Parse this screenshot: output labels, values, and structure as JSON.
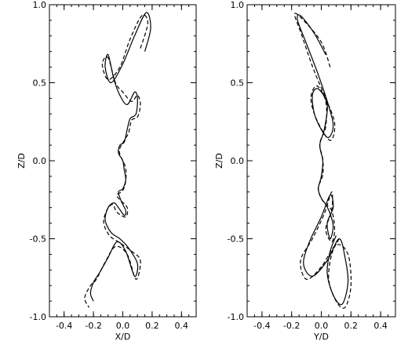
{
  "chart_data": [
    {
      "type": "line",
      "xlabel": "X/D",
      "ylabel": "Z/D",
      "xlim": [
        -0.5,
        0.5
      ],
      "ylim": [
        -1.0,
        1.0
      ],
      "xticks": [
        -0.4,
        -0.2,
        0.0,
        0.2,
        0.4
      ],
      "xtick_labels": [
        "-0.4",
        "-0.2",
        "0.0",
        "0.2",
        "0.4"
      ],
      "yticks": [
        -1.0,
        -0.5,
        0.0,
        0.5,
        1.0
      ],
      "ytick_labels": [
        "-1.0",
        "-0.5",
        "0.0",
        "0.5",
        "1.0"
      ],
      "grid": false,
      "series": [
        {
          "style": "solid",
          "x": [
            0.15,
            0.19,
            0.16,
            0.08,
            0.0,
            -0.08,
            -0.12,
            -0.1,
            -0.06,
            -0.02,
            0.03,
            0.08,
            0.1,
            0.09,
            0.05,
            0.03,
            0.01,
            -0.02,
            -0.03,
            0.0,
            0.01,
            0.02,
            0.0,
            -0.03,
            -0.01,
            0.02,
            0.01,
            -0.03,
            -0.06,
            -0.1,
            -0.12,
            -0.08,
            -0.02,
            0.04,
            0.1,
            0.08,
            0.02,
            -0.04,
            -0.1,
            -0.16,
            -0.2,
            -0.22,
            -0.2
          ],
          "y": [
            0.7,
            0.85,
            0.95,
            0.8,
            0.62,
            0.5,
            0.6,
            0.68,
            0.52,
            0.42,
            0.36,
            0.44,
            0.4,
            0.3,
            0.27,
            0.2,
            0.12,
            0.1,
            0.05,
            0.0,
            -0.06,
            -0.12,
            -0.18,
            -0.2,
            -0.26,
            -0.32,
            -0.35,
            -0.3,
            -0.27,
            -0.3,
            -0.38,
            -0.46,
            -0.5,
            -0.56,
            -0.66,
            -0.74,
            -0.58,
            -0.52,
            -0.62,
            -0.72,
            -0.78,
            -0.85,
            -0.9
          ]
        },
        {
          "style": "dashed",
          "x": [
            0.12,
            0.17,
            0.13,
            0.05,
            -0.02,
            -0.1,
            -0.14,
            -0.1,
            -0.05,
            0.0,
            0.06,
            0.1,
            0.12,
            0.1,
            0.06,
            0.04,
            0.01,
            -0.02,
            -0.02,
            0.0,
            0.02,
            0.02,
            0.0,
            -0.04,
            -0.02,
            0.03,
            0.02,
            -0.04,
            -0.07,
            -0.11,
            -0.13,
            -0.09,
            -0.03,
            0.06,
            0.12,
            0.09,
            0.03,
            -0.05,
            -0.12,
            -0.18,
            -0.22,
            -0.26,
            -0.23
          ],
          "y": [
            0.72,
            0.88,
            0.93,
            0.78,
            0.6,
            0.52,
            0.62,
            0.66,
            0.5,
            0.44,
            0.38,
            0.42,
            0.36,
            0.28,
            0.26,
            0.18,
            0.13,
            0.08,
            0.04,
            0.0,
            -0.05,
            -0.13,
            -0.19,
            -0.22,
            -0.25,
            -0.3,
            -0.36,
            -0.33,
            -0.28,
            -0.32,
            -0.4,
            -0.48,
            -0.52,
            -0.58,
            -0.64,
            -0.76,
            -0.6,
            -0.55,
            -0.65,
            -0.76,
            -0.8,
            -0.88,
            -0.94
          ]
        }
      ]
    },
    {
      "type": "line",
      "xlabel": "Y/D",
      "ylabel": "Z/D",
      "xlim": [
        -0.5,
        0.5
      ],
      "ylim": [
        -1.0,
        1.0
      ],
      "xticks": [
        -0.4,
        -0.2,
        0.0,
        0.2,
        0.4
      ],
      "xtick_labels": [
        "-0.4",
        "-0.2",
        "0.0",
        "0.2",
        "0.4"
      ],
      "yticks": [
        -1.0,
        -0.5,
        0.0,
        0.5,
        1.0
      ],
      "ytick_labels": [
        "-1.0",
        "-0.5",
        "0.0",
        "0.5",
        "1.0"
      ],
      "grid": false,
      "series": [
        {
          "style": "solid",
          "x": [
            0.03,
            -0.05,
            -0.14,
            -0.16,
            -0.1,
            -0.02,
            0.05,
            0.08,
            0.04,
            -0.04,
            -0.06,
            -0.02,
            0.04,
            0.02,
            -0.01,
            0.01,
            0.0,
            -0.02,
            0.0,
            0.03,
            0.06,
            0.08,
            0.06,
            0.04,
            0.08,
            0.06,
            0.0,
            -0.08,
            -0.12,
            -0.06,
            0.04,
            0.12,
            0.16,
            0.18,
            0.14,
            0.08,
            0.04,
            0.06,
            0.1
          ],
          "y": [
            0.68,
            0.82,
            0.93,
            0.9,
            0.75,
            0.55,
            0.35,
            0.22,
            0.15,
            0.28,
            0.42,
            0.46,
            0.36,
            0.2,
            0.1,
            0.0,
            -0.1,
            -0.18,
            -0.24,
            -0.28,
            -0.34,
            -0.42,
            -0.5,
            -0.4,
            -0.3,
            -0.22,
            -0.36,
            -0.52,
            -0.66,
            -0.74,
            -0.64,
            -0.5,
            -0.62,
            -0.78,
            -0.92,
            -0.86,
            -0.72,
            -0.58,
            -0.48
          ]
        },
        {
          "style": "dashed",
          "x": [
            0.06,
            0.0,
            -0.12,
            -0.18,
            -0.13,
            -0.05,
            0.03,
            0.09,
            0.06,
            -0.03,
            -0.07,
            -0.03,
            0.03,
            0.03,
            -0.01,
            0.01,
            0.01,
            -0.02,
            -0.01,
            0.02,
            0.07,
            0.09,
            0.07,
            0.03,
            0.07,
            0.07,
            0.02,
            -0.06,
            -0.14,
            -0.1,
            0.0,
            0.1,
            0.18,
            0.2,
            0.16,
            0.1,
            0.05,
            0.07,
            0.12
          ],
          "y": [
            0.6,
            0.76,
            0.9,
            0.94,
            0.8,
            0.58,
            0.4,
            0.24,
            0.13,
            0.26,
            0.4,
            0.48,
            0.38,
            0.22,
            0.11,
            0.01,
            -0.09,
            -0.17,
            -0.22,
            -0.27,
            -0.32,
            -0.44,
            -0.52,
            -0.44,
            -0.32,
            -0.2,
            -0.34,
            -0.5,
            -0.64,
            -0.76,
            -0.68,
            -0.54,
            -0.6,
            -0.8,
            -0.94,
            -0.9,
            -0.76,
            -0.6,
            -0.5
          ]
        }
      ]
    }
  ]
}
